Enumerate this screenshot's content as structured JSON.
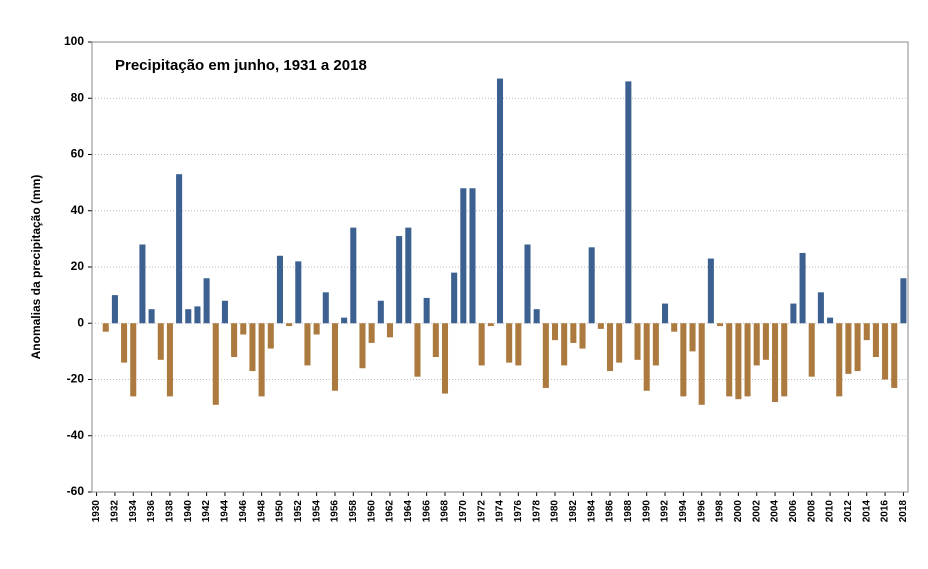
{
  "chart_data": {
    "type": "bar",
    "title": "Precipitação em junho, 1931 a 2018",
    "ylabel": "Anomalias da precipitação (mm)",
    "x": [
      1931,
      1932,
      1933,
      1934,
      1935,
      1936,
      1937,
      1938,
      1939,
      1940,
      1941,
      1942,
      1943,
      1944,
      1945,
      1946,
      1947,
      1948,
      1949,
      1950,
      1951,
      1952,
      1953,
      1954,
      1955,
      1956,
      1957,
      1958,
      1959,
      1960,
      1961,
      1962,
      1963,
      1964,
      1965,
      1966,
      1967,
      1968,
      1969,
      1970,
      1971,
      1972,
      1973,
      1974,
      1975,
      1976,
      1977,
      1978,
      1979,
      1980,
      1981,
      1982,
      1983,
      1984,
      1985,
      1986,
      1987,
      1988,
      1989,
      1990,
      1991,
      1992,
      1993,
      1994,
      1995,
      1996,
      1997,
      1998,
      1999,
      2000,
      2001,
      2002,
      2003,
      2004,
      2005,
      2006,
      2007,
      2008,
      2009,
      2010,
      2011,
      2012,
      2013,
      2014,
      2015,
      2016,
      2017,
      2018
    ],
    "values": [
      -3,
      10,
      -14,
      -26,
      28,
      5,
      -13,
      -26,
      53,
      5,
      6,
      16,
      -29,
      8,
      -12,
      -4,
      -17,
      -26,
      -9,
      24,
      -1,
      22,
      -15,
      -4,
      11,
      -24,
      2,
      34,
      -16,
      -7,
      8,
      -5,
      31,
      34,
      -19,
      9,
      -12,
      -25,
      18,
      48,
      48,
      -15,
      -1,
      87,
      -14,
      -15,
      28,
      5,
      -23,
      -6,
      -15,
      -7,
      -9,
      27,
      -2,
      -17,
      -14,
      86,
      -13,
      -24,
      -15,
      7,
      -3,
      -26,
      -10,
      -29,
      23,
      -1,
      -26,
      -27,
      -26,
      -15,
      -13,
      -28,
      -26,
      7,
      25,
      -19,
      11,
      2,
      -26,
      -18,
      -17,
      -6,
      -12,
      -20,
      -23,
      16
    ],
    "colors": {
      "positive": "#3c6191",
      "negative": "#ac7a3e"
    },
    "xlim": [
      1929.5,
      2018.5
    ],
    "xticks": [
      1930,
      1932,
      1934,
      1936,
      1938,
      1940,
      1942,
      1944,
      1946,
      1948,
      1950,
      1952,
      1954,
      1956,
      1958,
      1960,
      1962,
      1964,
      1966,
      1968,
      1970,
      1972,
      1974,
      1976,
      1978,
      1980,
      1982,
      1984,
      1986,
      1988,
      1990,
      1992,
      1994,
      1996,
      1998,
      2000,
      2002,
      2004,
      2006,
      2008,
      2010,
      2012,
      2014,
      2016,
      2018
    ],
    "ylim": [
      -60,
      100
    ],
    "yticks": [
      -60,
      -40,
      -20,
      0,
      20,
      40,
      60,
      80,
      100
    ],
    "grid": true
  }
}
